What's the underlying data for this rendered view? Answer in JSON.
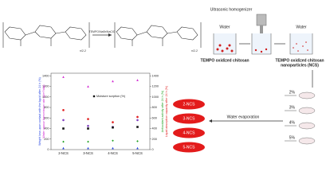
{
  "reaction": {
    "reagents": "TEMPO/NaBr/NaClO",
    "repeat_left": "n/2-2",
    "repeat_right": "n/2-2"
  },
  "process": {
    "homogenizer": "Ultrasonic homogenizer",
    "water_left": "Water",
    "water_right": "Water",
    "product_left": "TEMPO oxidized chitosan",
    "product_right": [
      "TEMPO oxidized chitosan",
      "nanoparticles (NCS)"
    ],
    "evaporation": "Water evaporation",
    "concentrations": [
      "2%",
      "3%",
      "4%",
      "5%"
    ],
    "films": [
      "2-NCS",
      "3-NCS",
      "4-NCS",
      "5-NCS"
    ]
  },
  "chart_data": {
    "type": "scatter",
    "categories": [
      "2-NCS",
      "3-NCS",
      "4-NCS",
      "5-NCS"
    ],
    "ylim": [
      0,
      1450
    ],
    "yticks": [
      0,
      200,
      400,
      600,
      800,
      1000,
      1200,
      1400
    ],
    "y2lim": [
      0,
      1450
    ],
    "y2ticks": [
      0,
      200,
      400,
      600,
      800,
      1000,
      1200,
      1400
    ],
    "y_labels": [
      {
        "text": "Weight loss upon contact with the liquid after 24 h (%)",
        "color": "#2040e0"
      },
      {
        "text": "Water vapour transmission rate (g/m²/day)",
        "color": "#d020d0"
      }
    ],
    "y2_labels": [
      {
        "text": "Antioxidant activity after 24 h (%)",
        "color": "#20a020"
      },
      {
        "text": "Liquid absorption capacity after 24 h (%)",
        "color": "#e02020"
      }
    ],
    "series": [
      {
        "color": "#d020d0",
        "marker": "triangle",
        "values": [
          1380,
          1200,
          1300,
          1320
        ]
      },
      {
        "color": "#e02020",
        "marker": "circle",
        "axis": "y2",
        "values": [
          750,
          580,
          520,
          620
        ]
      },
      {
        "color": "#8040c0",
        "marker": "circle",
        "values": [
          560,
          450,
          430,
          560
        ]
      },
      {
        "name": "Moisture sorption (%)",
        "color": "#111111",
        "marker": "square",
        "values": [
          400,
          400,
          420,
          430
        ]
      },
      {
        "color": "#20a020",
        "marker": "diamond",
        "axis": "y2",
        "values": [
          150,
          150,
          170,
          160
        ]
      },
      {
        "color": "#2040e0",
        "marker": "triangle",
        "values": [
          30,
          30,
          30,
          30
        ]
      }
    ]
  }
}
